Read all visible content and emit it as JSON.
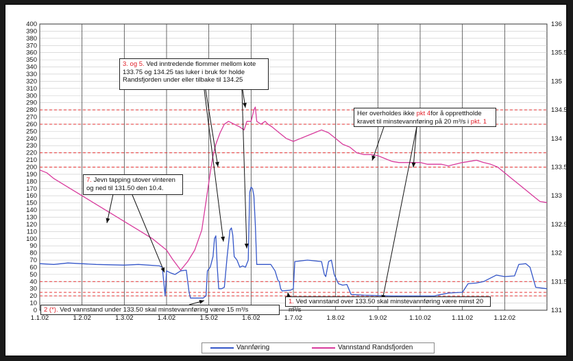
{
  "chart_data": {
    "type": "line",
    "x_ticks": [
      "1.1.02",
      "1.2.02",
      "1.3.02",
      "1.4.02",
      "1.5.02",
      "1.6.02",
      "1.7.02",
      "1.8.02",
      "1.9.02",
      "1.10.02",
      "1.11.02",
      "1.12.02"
    ],
    "y_left_ticks": [
      "0",
      "10",
      "20",
      "30",
      "40",
      "50",
      "60",
      "70",
      "80",
      "90",
      "100",
      "110",
      "120",
      "130",
      "140",
      "150",
      "160",
      "170",
      "180",
      "190",
      "200",
      "210",
      "220",
      "230",
      "240",
      "250",
      "260",
      "270",
      "280",
      "290",
      "300",
      "310",
      "320",
      "330",
      "340",
      "350",
      "360",
      "370",
      "380",
      "390",
      "400"
    ],
    "y_right_ticks": [
      "131",
      "131.5",
      "132",
      "132.5",
      "133",
      "133.5",
      "134",
      "134.5",
      "135",
      "135.5",
      "136"
    ],
    "ylim_left": [
      0,
      400
    ],
    "ylim_right": [
      131,
      136
    ],
    "grid": true,
    "reference_lines_left": [
      20,
      25,
      40,
      200,
      220,
      260,
      280
    ],
    "series": [
      {
        "name": "Vannføring",
        "color": "#3355c8",
        "axis": "left",
        "points": [
          [
            0,
            65
          ],
          [
            10,
            64
          ],
          [
            20,
            66
          ],
          [
            40,
            64
          ],
          [
            60,
            63
          ],
          [
            70,
            64
          ],
          [
            85,
            62
          ],
          [
            87,
            60
          ],
          [
            89,
            20
          ],
          [
            90,
            55
          ],
          [
            93,
            52
          ],
          [
            96,
            50
          ],
          [
            100,
            55
          ],
          [
            104,
            56
          ],
          [
            106,
            25
          ],
          [
            107,
            17
          ],
          [
            110,
            17
          ],
          [
            116,
            17
          ],
          [
            118,
            20
          ],
          [
            119,
            55
          ],
          [
            121,
            60
          ],
          [
            123,
            75
          ],
          [
            124,
            100
          ],
          [
            125,
            104
          ],
          [
            126,
            60
          ],
          [
            127,
            30
          ],
          [
            129,
            30
          ],
          [
            131,
            32
          ],
          [
            133,
            75
          ],
          [
            135,
            112
          ],
          [
            136,
            115
          ],
          [
            137,
            105
          ],
          [
            138,
            75
          ],
          [
            140,
            70
          ],
          [
            142,
            60
          ],
          [
            144,
            62
          ],
          [
            146,
            60
          ],
          [
            148,
            70
          ],
          [
            149,
            165
          ],
          [
            150,
            172
          ],
          [
            151,
            170
          ],
          [
            152,
            160
          ],
          [
            153,
            120
          ],
          [
            154,
            64
          ],
          [
            158,
            64
          ],
          [
            164,
            64
          ],
          [
            167,
            55
          ],
          [
            169,
            42
          ],
          [
            170,
            40
          ],
          [
            171,
            30
          ],
          [
            172,
            27
          ],
          [
            178,
            28
          ],
          [
            180,
            30
          ],
          [
            181,
            68
          ],
          [
            190,
            70
          ],
          [
            200,
            68
          ],
          [
            202,
            50
          ],
          [
            203,
            47
          ],
          [
            205,
            68
          ],
          [
            207,
            70
          ],
          [
            209,
            50
          ],
          [
            212,
            37
          ],
          [
            215,
            35
          ],
          [
            218,
            36
          ],
          [
            221,
            22
          ],
          [
            230,
            21
          ],
          [
            250,
            20
          ],
          [
            275,
            20
          ],
          [
            280,
            20
          ],
          [
            290,
            24
          ],
          [
            300,
            25
          ],
          [
            304,
            37
          ],
          [
            310,
            38
          ],
          [
            315,
            40
          ],
          [
            320,
            45
          ],
          [
            324,
            49
          ],
          [
            330,
            47
          ],
          [
            337,
            48
          ],
          [
            340,
            64
          ],
          [
            345,
            65
          ],
          [
            348,
            60
          ],
          [
            352,
            32
          ],
          [
            360,
            30
          ]
        ]
      },
      {
        "name": "Vannstand Randsfjorden",
        "color": "#d83a9c",
        "axis": "right",
        "points": [
          [
            0,
            133.45
          ],
          [
            5,
            133.4
          ],
          [
            10,
            133.3
          ],
          [
            20,
            133.15
          ],
          [
            30,
            133.0
          ],
          [
            40,
            132.85
          ],
          [
            50,
            132.7
          ],
          [
            60,
            132.55
          ],
          [
            70,
            132.4
          ],
          [
            80,
            132.25
          ],
          [
            85,
            132.15
          ],
          [
            90,
            132.05
          ],
          [
            94,
            131.9
          ],
          [
            97,
            131.8
          ],
          [
            100,
            131.7
          ],
          [
            105,
            131.85
          ],
          [
            110,
            132.05
          ],
          [
            115,
            132.4
          ],
          [
            118,
            132.9
          ],
          [
            121,
            133.4
          ],
          [
            123,
            133.7
          ],
          [
            125,
            133.9
          ],
          [
            128,
            134.1
          ],
          [
            131,
            134.25
          ],
          [
            134,
            134.3
          ],
          [
            138,
            134.25
          ],
          [
            142,
            134.2
          ],
          [
            145,
            134.15
          ],
          [
            147,
            134.3
          ],
          [
            150,
            134.3
          ],
          [
            151,
            134.4
          ],
          [
            152,
            134.5
          ],
          [
            153,
            134.55
          ],
          [
            154,
            134.3
          ],
          [
            157,
            134.25
          ],
          [
            160,
            134.3
          ],
          [
            162,
            134.25
          ],
          [
            165,
            134.2
          ],
          [
            170,
            134.1
          ],
          [
            175,
            134.0
          ],
          [
            180,
            133.95
          ],
          [
            185,
            134.0
          ],
          [
            190,
            134.05
          ],
          [
            195,
            134.1
          ],
          [
            200,
            134.15
          ],
          [
            205,
            134.1
          ],
          [
            210,
            134.0
          ],
          [
            215,
            133.9
          ],
          [
            220,
            133.85
          ],
          [
            225,
            133.75
          ],
          [
            230,
            133.72
          ],
          [
            235,
            133.72
          ],
          [
            240,
            133.7
          ],
          [
            245,
            133.65
          ],
          [
            250,
            133.6
          ],
          [
            255,
            133.58
          ],
          [
            260,
            133.58
          ],
          [
            265,
            133.58
          ],
          [
            270,
            133.58
          ],
          [
            275,
            133.55
          ],
          [
            280,
            133.55
          ],
          [
            285,
            133.55
          ],
          [
            290,
            133.52
          ],
          [
            295,
            133.55
          ],
          [
            300,
            133.58
          ],
          [
            305,
            133.6
          ],
          [
            310,
            133.62
          ],
          [
            315,
            133.58
          ],
          [
            320,
            133.55
          ],
          [
            325,
            133.5
          ],
          [
            330,
            133.4
          ],
          [
            335,
            133.3
          ],
          [
            340,
            133.2
          ],
          [
            345,
            133.1
          ],
          [
            350,
            133.0
          ],
          [
            355,
            132.9
          ],
          [
            360,
            132.88
          ]
        ]
      }
    ]
  },
  "annotations": {
    "note_3_5": {
      "ref": "3. og 5.",
      "text": "Ved inntredende flommer mellom kote 133.75 og 134.25 tas luker i bruk for holde Randsfjorden under eller tilbake til 134.25"
    },
    "note_4": {
      "text_a": "Her overholdes ikke",
      "ref": "pkt 4",
      "text_b": "for å opprettholde kravet til minstevannføring på 20 m³/s i",
      "ref2": "pkt. 1"
    },
    "note_7": {
      "ref": "7.",
      "text": "Jevn tapping utover vinteren og ned til 131.50 den 10.4."
    },
    "note_2": {
      "ref": "2 (*).",
      "text": "Ved vannstand under 133.50 skal minstevannføring være 15 m³/s"
    },
    "note_1": {
      "ref": "1.",
      "text": "Ved vannstand over 133.50 skal minstevannføring være minst 20 m³/s"
    }
  },
  "legend": {
    "flow_label": "Vannføring",
    "level_label": "Vannstand Randsfjorden"
  }
}
